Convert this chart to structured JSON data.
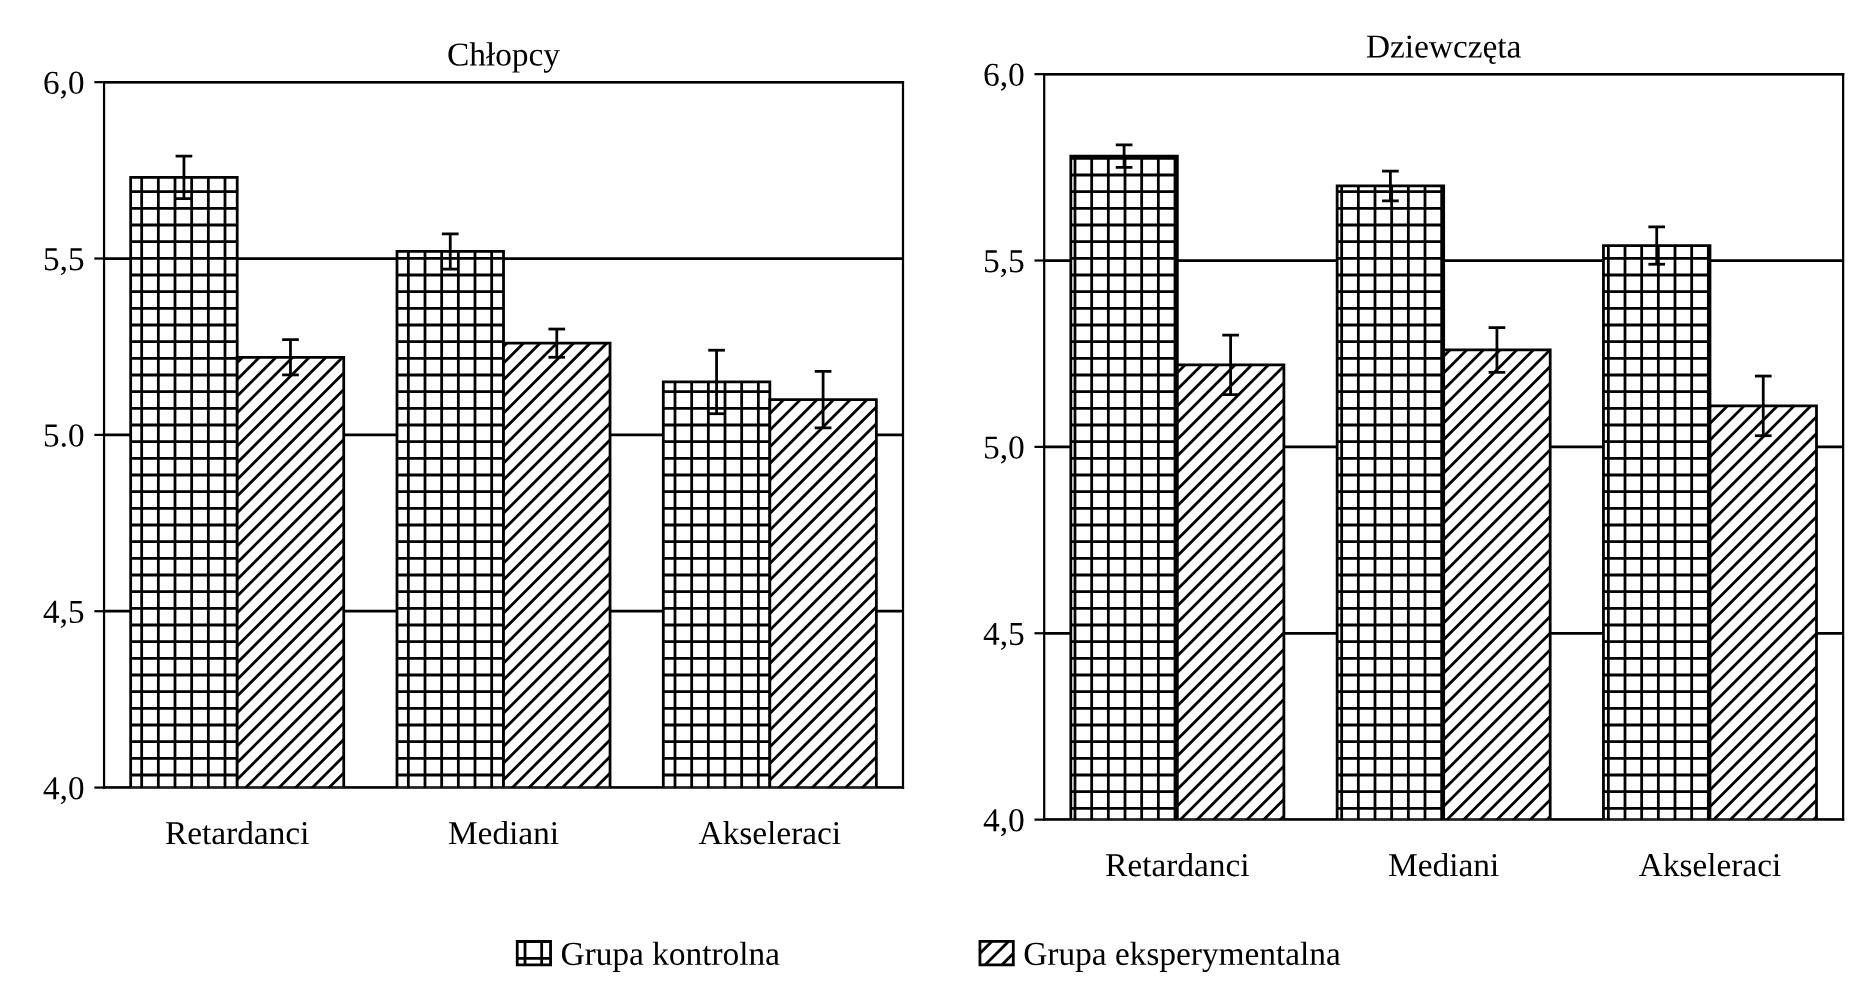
{
  "chart_data": [
    {
      "type": "bar",
      "title": "Chłopcy",
      "categories": [
        "Retardanci",
        "Mediani",
        "Akseleraci"
      ],
      "series": [
        {
          "name": "Grupa kontrolna",
          "color": "#000000",
          "values": [
            5.73,
            5.52,
            5.15
          ],
          "errors": [
            0.06,
            0.05,
            0.09
          ]
        },
        {
          "name": "Grupa eksperymentalna",
          "color": "#000000",
          "values": [
            5.22,
            5.26,
            5.1
          ],
          "errors": [
            0.05,
            0.04,
            0.08
          ]
        }
      ],
      "ylim": [
        4.0,
        6.0
      ],
      "yticks": [
        {
          "value": 4.0,
          "label": "4,0"
        },
        {
          "value": 4.5,
          "label": "4,5"
        },
        {
          "value": 5.0,
          "label": "5.0"
        },
        {
          "value": 5.5,
          "label": "5,5"
        },
        {
          "value": 6.0,
          "label": "6,0"
        }
      ],
      "grid": "y",
      "legend": "bottom"
    },
    {
      "type": "bar",
      "title": "Dziewczęta",
      "categories": [
        "Retardanci",
        "Mediani",
        "Akseleraci"
      ],
      "series": [
        {
          "color": "#000000",
          "values": [
            5.78,
            5.7,
            5.54
          ],
          "errors": [
            0.03,
            0.04,
            0.05
          ]
        },
        {
          "color": "#000000",
          "values": [
            5.22,
            5.26,
            5.11
          ],
          "errors": [
            0.08,
            0.06,
            0.08
          ]
        }
      ],
      "ylim": [
        4.0,
        6.0
      ],
      "yticks": [
        {
          "value": 4.0,
          "label": "4,0"
        },
        {
          "value": 4.5,
          "label": "4,5"
        },
        {
          "value": 5.0,
          "label": "5,0"
        },
        {
          "value": 5.5,
          "label": "5,5"
        },
        {
          "value": 6.0,
          "label": "6,0"
        }
      ],
      "grid": "y"
    }
  ]
}
